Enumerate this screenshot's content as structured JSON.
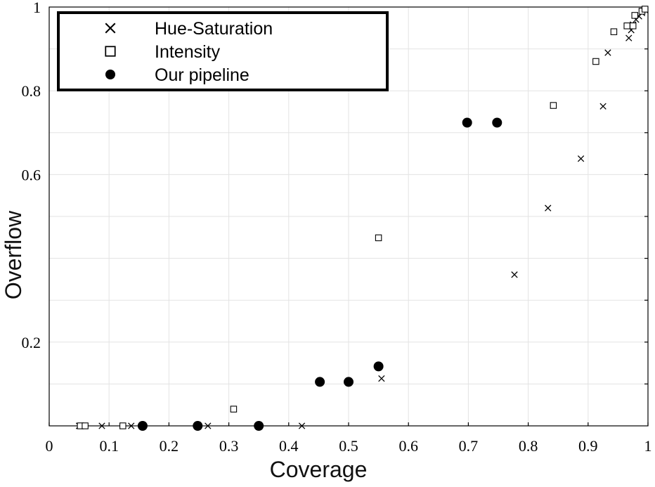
{
  "chart_data": {
    "type": "scatter",
    "xlabel": "Coverage",
    "ylabel": "Overflow",
    "xlim": [
      0,
      1
    ],
    "ylim": [
      0,
      1
    ],
    "grid": true,
    "legend_position": "top-left",
    "x_ticks": [
      0,
      0.1,
      0.2,
      0.3,
      0.4,
      0.5,
      0.6,
      0.7,
      0.8,
      0.9,
      1
    ],
    "x_tick_labels": [
      "0",
      "0.1",
      "0.2",
      "0.3",
      "0.4",
      "0.5",
      "0.6",
      "0.7",
      "0.8",
      "0.9",
      "1"
    ],
    "y_ticks": [
      0.1,
      0.2,
      0.3,
      0.4,
      0.5,
      0.6,
      0.7,
      0.8,
      0.9,
      1
    ],
    "y_tick_labels": [
      "",
      "0.2",
      "",
      "",
      "",
      "0.6",
      "",
      "0.8",
      "",
      "1"
    ],
    "series": [
      {
        "name": "Hue-Saturation",
        "marker": "x",
        "x": [
          0.05,
          0.055,
          0.088,
          0.137,
          0.265,
          0.422,
          0.555,
          0.777,
          0.833,
          0.888,
          0.925,
          0.933,
          0.968,
          0.972,
          0.975,
          0.98,
          0.985,
          0.99,
          0.995
        ],
        "y": [
          0.0,
          0.0,
          0.0,
          0.0,
          0.0,
          0.0,
          0.113,
          0.361,
          0.52,
          0.638,
          0.763,
          0.891,
          0.926,
          0.945,
          0.958,
          0.97,
          0.978,
          0.986,
          0.993
        ]
      },
      {
        "name": "Intensity",
        "marker": "square",
        "x": [
          0.052,
          0.06,
          0.123,
          0.308,
          0.55,
          0.842,
          0.913,
          0.943,
          0.965,
          0.975,
          0.978,
          0.99,
          0.995
        ],
        "y": [
          0.0,
          0.0,
          0.0,
          0.04,
          0.449,
          0.765,
          0.87,
          0.941,
          0.955,
          0.955,
          0.98,
          0.99,
          0.995
        ]
      },
      {
        "name": "Our pipeline",
        "marker": "circle",
        "x": [
          0.156,
          0.248,
          0.35,
          0.452,
          0.5,
          0.55,
          0.698,
          0.748
        ],
        "y": [
          0.0,
          0.0,
          0.0,
          0.105,
          0.105,
          0.142,
          0.724,
          0.724
        ]
      }
    ]
  },
  "colors": {
    "markers": "#000000",
    "grid": "#e3e3e3",
    "background": "#ffffff"
  }
}
